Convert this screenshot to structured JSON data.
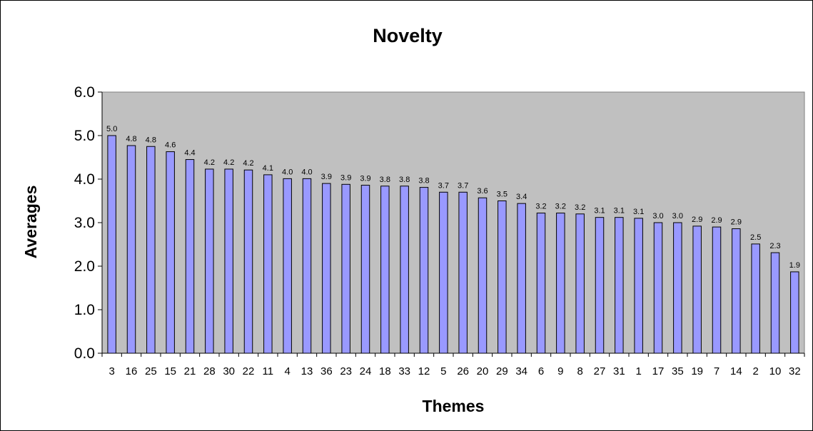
{
  "chart_data": {
    "type": "bar",
    "title": "Novelty",
    "xlabel": "Themes",
    "ylabel": "Averages",
    "ylim": [
      0,
      6
    ],
    "yticks": [
      "0.0",
      "1.0",
      "2.0",
      "3.0",
      "4.0",
      "5.0",
      "6.0"
    ],
    "grid": false,
    "legend": "none",
    "categories": [
      "3",
      "16",
      "25",
      "15",
      "21",
      "28",
      "30",
      "22",
      "11",
      "4",
      "13",
      "36",
      "23",
      "24",
      "18",
      "33",
      "12",
      "5",
      "26",
      "20",
      "29",
      "34",
      "6",
      "9",
      "8",
      "27",
      "31",
      "1",
      "17",
      "35",
      "19",
      "7",
      "14",
      "2",
      "10",
      "32"
    ],
    "values": [
      5.0,
      4.77,
      4.75,
      4.63,
      4.45,
      4.23,
      4.23,
      4.21,
      4.1,
      4.01,
      4.01,
      3.9,
      3.88,
      3.86,
      3.84,
      3.84,
      3.81,
      3.7,
      3.7,
      3.57,
      3.5,
      3.44,
      3.22,
      3.22,
      3.2,
      3.12,
      3.12,
      3.1,
      3.0,
      3.0,
      2.92,
      2.9,
      2.86,
      2.51,
      2.31,
      1.87
    ],
    "data_labels": [
      "5.0",
      "4.8",
      "4.8",
      "4.6",
      "4.4",
      "4.2",
      "4.2",
      "4.2",
      "4.1",
      "4.0",
      "4.0",
      "3.9",
      "3.9",
      "3.9",
      "3.8",
      "3.8",
      "3.8",
      "3.7",
      "3.7",
      "3.6",
      "3.5",
      "3.4",
      "3.2",
      "3.2",
      "3.2",
      "3.1",
      "3.1",
      "3.1",
      "3.0",
      "3.0",
      "2.9",
      "2.9",
      "2.9",
      "2.5",
      "2.3",
      "1.9"
    ],
    "colors": {
      "plot_background": "#c0c0c0",
      "bar_fill": "#9999ff",
      "bar_stroke": "#000000",
      "axis": "#000000"
    }
  }
}
